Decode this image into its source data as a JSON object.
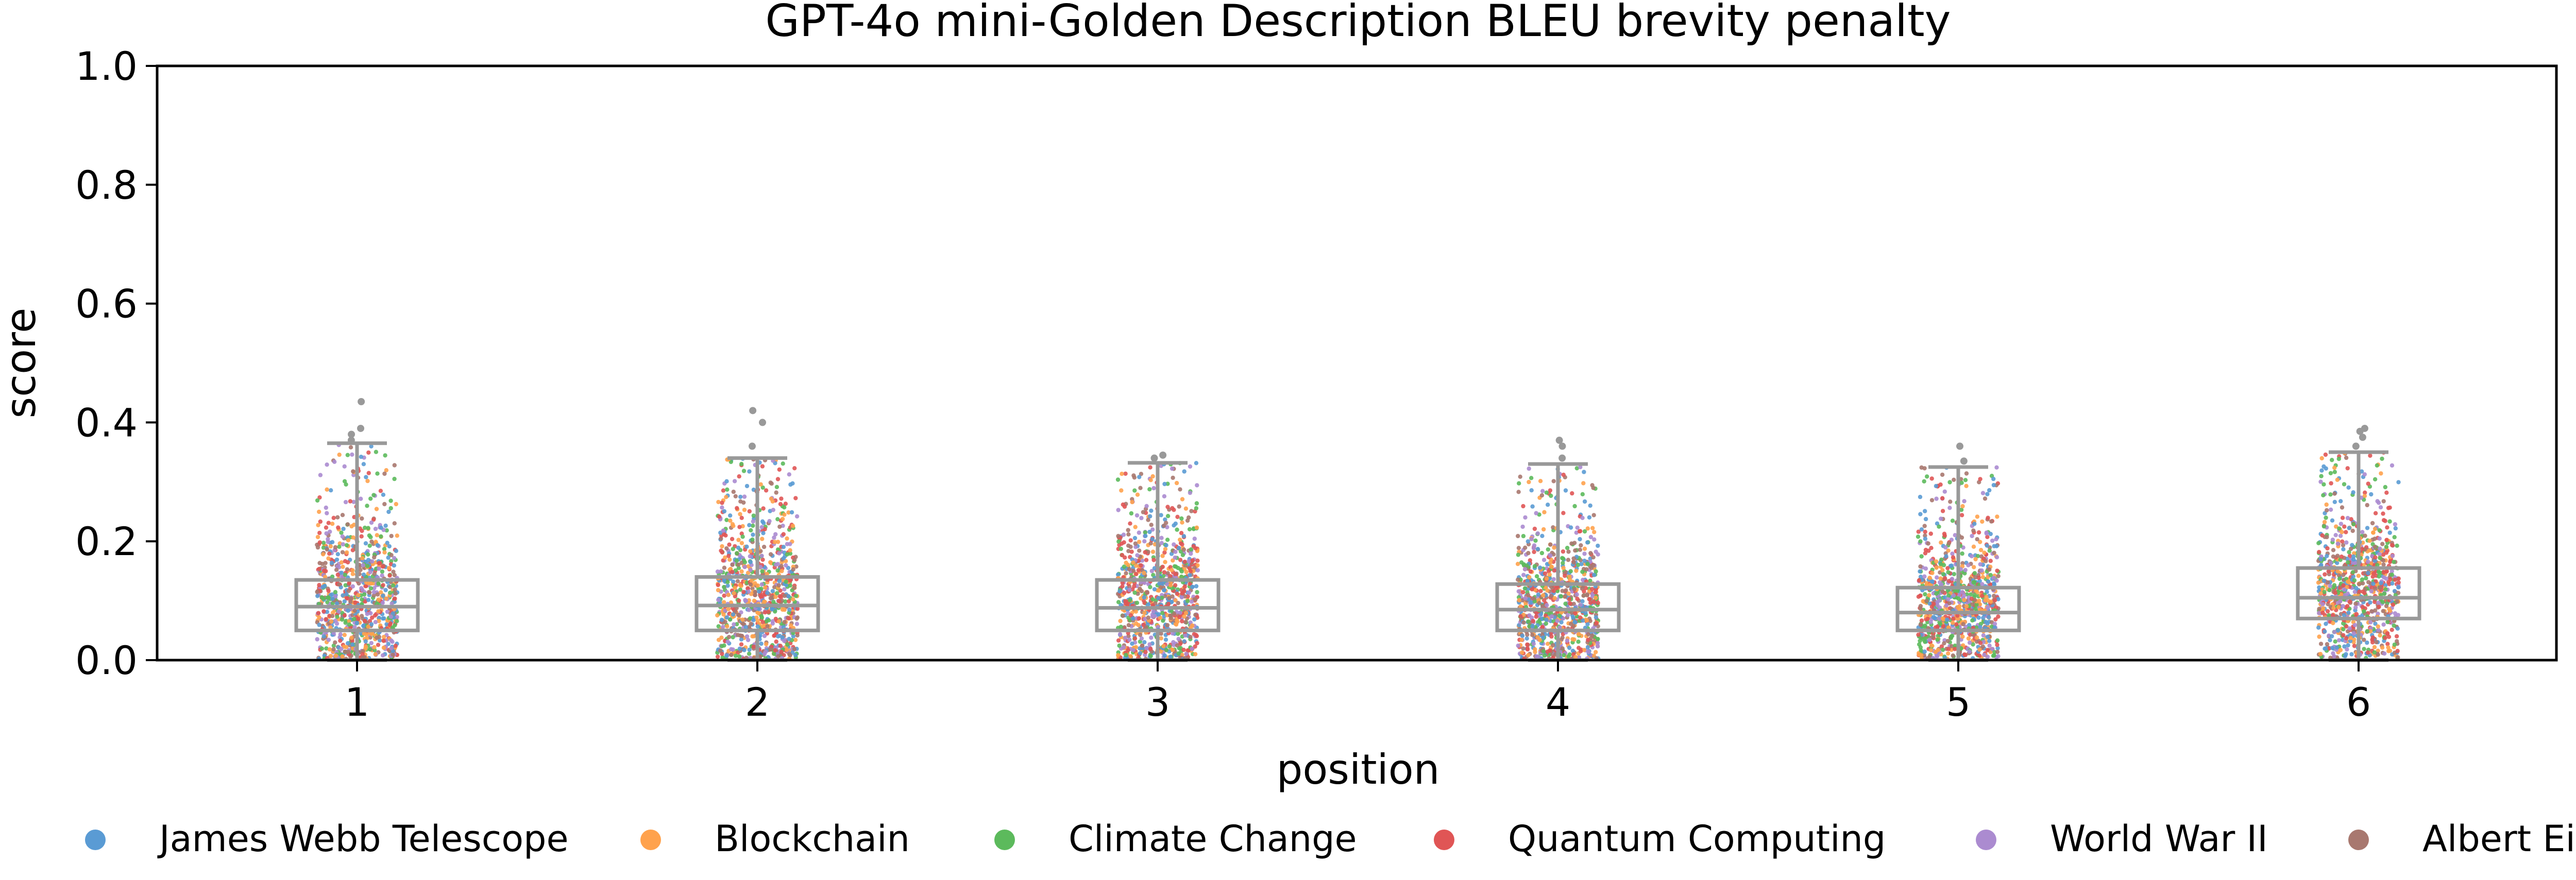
{
  "chart_data": {
    "type": "box-strip",
    "title": "GPT-4o mini-Golden Description BLEU brevity penalty",
    "xlabel": "position",
    "ylabel": "score",
    "ylim": [
      0,
      1
    ],
    "yticks": [
      "0.0",
      "0.2",
      "0.4",
      "0.6",
      "0.8",
      "1.0"
    ],
    "categories": [
      "1",
      "2",
      "3",
      "4",
      "5",
      "6"
    ],
    "grid": false,
    "legend_placement": "bottom",
    "series": [
      {
        "name": "James Webb Telescope",
        "color": "#5a9bd4"
      },
      {
        "name": "Blockchain",
        "color": "#ffa24d"
      },
      {
        "name": "Climate Change",
        "color": "#5cba5c"
      },
      {
        "name": "Quantum Computing",
        "color": "#e05555"
      },
      {
        "name": "World War II",
        "color": "#ab8bd0"
      },
      {
        "name": "Albert Einstein",
        "color": "#a8786f"
      }
    ],
    "boxes": [
      {
        "position": "1",
        "whisker_low": 0.0,
        "q1": 0.05,
        "median": 0.09,
        "q3": 0.135,
        "whisker_high": 0.365,
        "outliers": [
          0.37,
          0.38,
          0.39,
          0.435
        ]
      },
      {
        "position": "2",
        "whisker_low": 0.0,
        "q1": 0.05,
        "median": 0.092,
        "q3": 0.14,
        "whisker_high": 0.34,
        "outliers": [
          0.36,
          0.4,
          0.42
        ]
      },
      {
        "position": "3",
        "whisker_low": 0.0,
        "q1": 0.05,
        "median": 0.088,
        "q3": 0.135,
        "whisker_high": 0.332,
        "outliers": [
          0.34,
          0.345
        ]
      },
      {
        "position": "4",
        "whisker_low": 0.0,
        "q1": 0.05,
        "median": 0.085,
        "q3": 0.128,
        "whisker_high": 0.33,
        "outliers": [
          0.34,
          0.36,
          0.37
        ]
      },
      {
        "position": "5",
        "whisker_low": 0.0,
        "q1": 0.05,
        "median": 0.08,
        "q3": 0.122,
        "whisker_high": 0.325,
        "outliers": [
          0.335,
          0.36
        ]
      },
      {
        "position": "6",
        "whisker_low": 0.0,
        "q1": 0.07,
        "median": 0.105,
        "q3": 0.155,
        "whisker_high": 0.35,
        "outliers": [
          0.36,
          0.375,
          0.385,
          0.39
        ]
      }
    ],
    "box_color": "#999999"
  }
}
